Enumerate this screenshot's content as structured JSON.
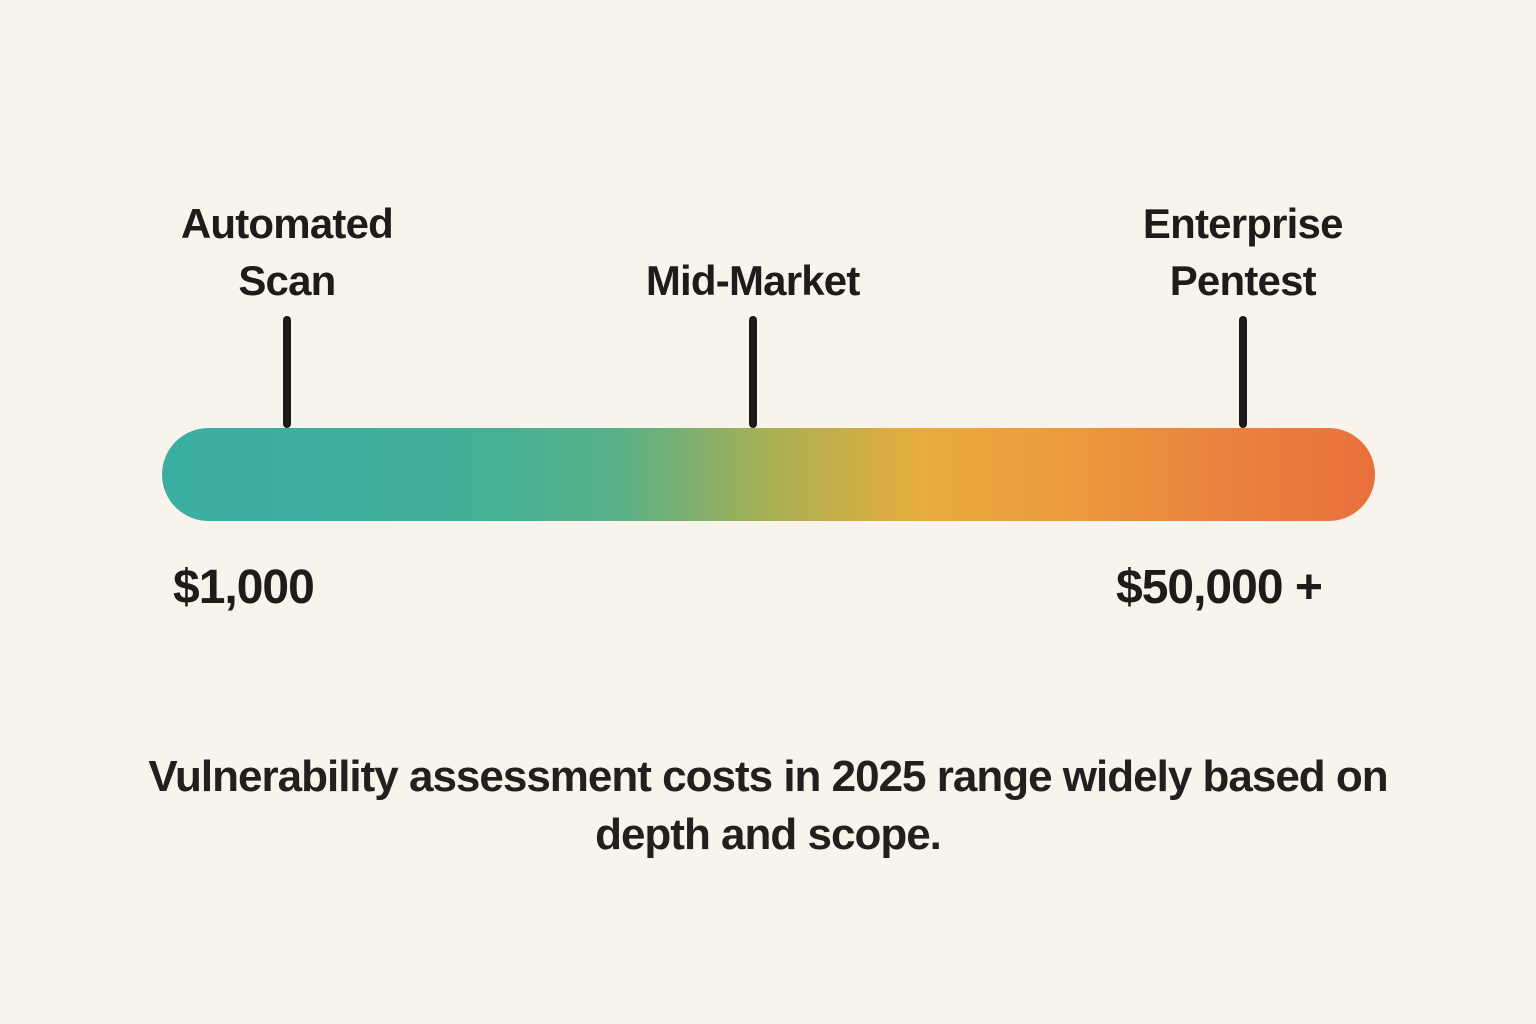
{
  "background_color": "#F8F4EC",
  "text_color": "#1D1C1A",
  "tick_color": "#1B1A18",
  "chart_data": {
    "type": "bar",
    "subtype": "gradient-range-scale",
    "orientation": "horizontal",
    "title": "",
    "caption": "Vulnerability assessment costs in 2025 range widely based on depth and scope.",
    "min_label": "$1,000",
    "max_label": "$50,000 +",
    "axis": "none",
    "grid": false,
    "legend_position": "none",
    "markers": [
      {
        "label": "Automated Scan",
        "position_pct": 10.3,
        "value": "$1,000"
      },
      {
        "label": "Mid-Market",
        "position_pct": 48.7,
        "value": null
      },
      {
        "label": "Enterprise Pentest",
        "position_pct": 89.1,
        "value": "$50,000 +"
      }
    ],
    "gradient_colors": [
      "#3BAEA2",
      "#3DAFA0",
      "#42B098",
      "#57B187",
      "#A8B054",
      "#E7AC3E",
      "#EC9A3D",
      "#EA823D",
      "#E9703C"
    ]
  }
}
